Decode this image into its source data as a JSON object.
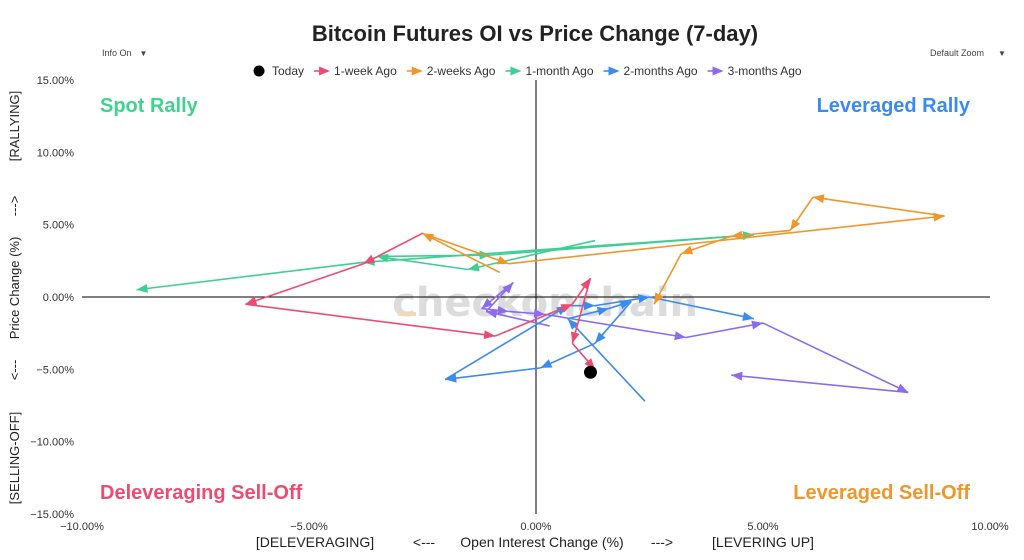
{
  "controls": {
    "info_label": "Info On",
    "zoom_label": "Default Zoom"
  },
  "colors": {
    "Today": "#000000",
    "1-week Ago": "#ec4c72",
    "2-weeks Ago": "#f0962a",
    "1-month Ago": "#3fcf94",
    "2-months Ago": "#3b8bef",
    "3-months Ago": "#8b6cf0",
    "spot_rally": "#3fd38f",
    "leveraged_rally": "#3b8bef",
    "deleveraging_selloff": "#ec4c72",
    "leveraged_selloff": "#f0962a",
    "watermark": "#dcdcdc"
  },
  "chart_data": {
    "type": "scatter",
    "title": "Bitcoin Futures OI vs Price Change (7-day)",
    "xlabel": "Open Interest Change (%)",
    "xlabel_left": "[DELEVERAGING]",
    "xlabel_arrow_left": "<---",
    "xlabel_arrow_right": "--->",
    "xlabel_right": "[LEVERING UP]",
    "ylabel": "Price Change (%)",
    "ylabel_top": "[RALLYING]",
    "ylabel_arrow_top": "--->",
    "ylabel_arrow_bottom": "<---",
    "ylabel_bottom": "[SELLING-OFF]",
    "xlim": [
      -10,
      10
    ],
    "ylim": [
      -15,
      15
    ],
    "xticks": [
      -10,
      -5,
      0,
      5,
      10
    ],
    "yticks": [
      -15,
      -10,
      -5,
      0,
      5,
      10,
      15
    ],
    "xtick_labels": [
      "−10.00%",
      "−5.00%",
      "0.00%",
      "5.00%",
      "10.00%"
    ],
    "ytick_labels": [
      "−15.00%",
      "−10.00%",
      "−5.00%",
      "0.00%",
      "5.00%",
      "10.00%",
      "15.00%"
    ],
    "grid": false,
    "legend_position": "top-center",
    "quadrant_labels": {
      "top_left": "Spot Rally",
      "top_right": "Leveraged Rally",
      "bottom_left": "Deleveraging Sell-Off",
      "bottom_right": "Leveraged Sell-Off"
    },
    "watermark": "checkonchain",
    "series": [
      {
        "name": "3-months Ago",
        "x": [
          0.3,
          -1.1,
          -0.5,
          -1.2,
          -0.6,
          0.2,
          3.3,
          5.0,
          8.2,
          4.3
        ],
        "y": [
          -2.0,
          -1.0,
          1.0,
          -0.8,
          -1.0,
          -1.2,
          -2.8,
          -1.8,
          -6.6,
          -5.4
        ]
      },
      {
        "name": "2-months Ago",
        "x": [
          2.4,
          0.7,
          1.6,
          2.1,
          1.3,
          0.1,
          -2.0,
          0.7,
          1.3,
          2.5,
          4.8
        ],
        "y": [
          -7.2,
          -1.5,
          -0.8,
          -0.3,
          -3.2,
          -4.9,
          -5.7,
          -0.6,
          -0.6,
          0.0,
          -1.5
        ]
      },
      {
        "name": "1-month Ago",
        "x": [
          1.3,
          -1.5,
          -3.5,
          -1.0,
          4.8,
          -3.8,
          -8.8
        ],
        "y": [
          3.9,
          1.9,
          2.8,
          2.9,
          4.3,
          2.4,
          0.5
        ]
      },
      {
        "name": "2-weeks Ago",
        "x": [
          -0.8,
          -2.5,
          -0.6,
          9.0,
          6.1,
          5.6,
          4.3,
          3.2,
          2.6
        ],
        "y": [
          1.7,
          4.4,
          2.3,
          5.6,
          6.9,
          4.6,
          4.2,
          3.0,
          -0.5
        ]
      },
      {
        "name": "1-week Ago",
        "x": [
          -2.5,
          -3.8,
          -6.4,
          -0.9,
          0.8,
          1.2,
          0.8,
          1.3
        ],
        "y": [
          4.4,
          2.3,
          -0.5,
          -2.7,
          -0.5,
          1.3,
          -3.2,
          -5.0
        ]
      },
      {
        "name": "Today",
        "x": [
          1.2
        ],
        "y": [
          -5.2
        ]
      }
    ]
  }
}
